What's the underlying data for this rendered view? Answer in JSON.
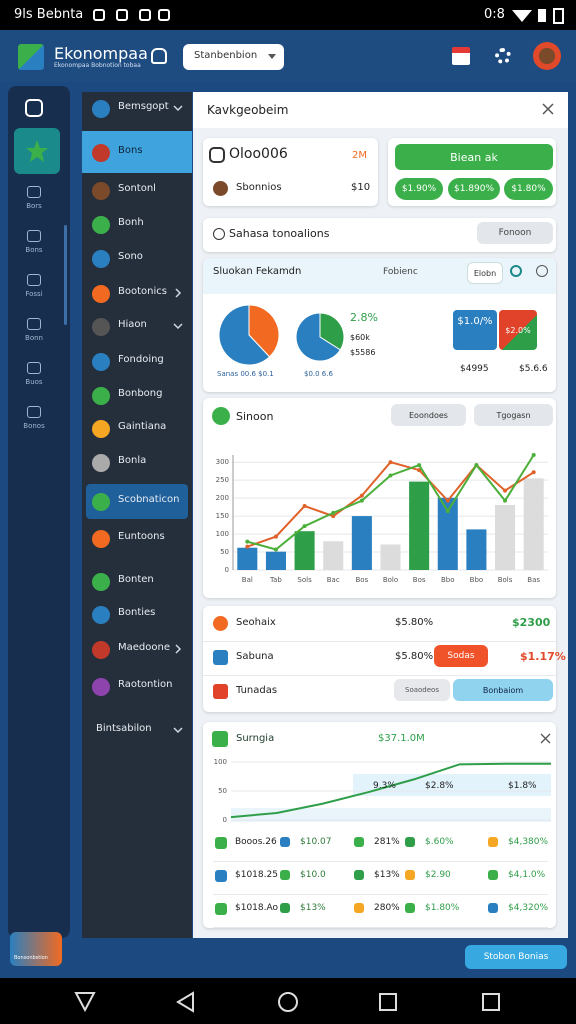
{
  "status_bar": {
    "left": "9ls Bebnta",
    "right": "0:8"
  },
  "header": {
    "title": "Ekonompaa",
    "subtitle": "Ekonompaa Bobnotion tobaa",
    "search": "Stanbenbion"
  },
  "rail": {
    "items": [
      "Bors",
      "Bons",
      "Fossi",
      "Bonn",
      "Buos",
      "Bonos"
    ],
    "card": "Bonsonbstion"
  },
  "menu": {
    "items": [
      "Bemsgopt",
      "Bons",
      "Sontonl",
      "Bonh",
      "Sono",
      "Bootonics",
      "Hiaon",
      "Fondoing",
      "Bonbong",
      "Gaintiana",
      "Bonla",
      "Scobnaticon",
      "Euntoons",
      "Bonten",
      "Bonties",
      "Maedoone",
      "Raotontion",
      "Bintsabilon"
    ]
  },
  "panel": {
    "title": "Kavkgeobeim",
    "summary": {
      "title": "Oloo006",
      "badge": "2M",
      "row_label": "Sbonnios",
      "row_value": "$10",
      "button": "Biean ak",
      "pills": [
        "$1.90%",
        "$1.890%",
        "$1.80%"
      ]
    },
    "filter": {
      "label": "Sahasa tonoalions",
      "select": "Fonoon"
    },
    "pie_card": {
      "title": "Sluokan Fekamdn",
      "subtitle": "Fobienc",
      "tab": "Elobn",
      "pies": [
        {
          "values": [
            38,
            62
          ],
          "colors": [
            "#f26a21",
            "#2a7fc0"
          ]
        },
        {
          "values": [
            34,
            66
          ],
          "colors": [
            "#2f9e49",
            "#2a7fc0"
          ]
        }
      ],
      "stats": [
        "2.8%",
        "$60k",
        "$5586"
      ],
      "tiles": [
        "$1.0/%",
        "$2.0%"
      ],
      "tile_values": [
        "$4995",
        "$5.6.6"
      ],
      "legend": [
        "Sanas 00.6 $0.1",
        "$0.0 6.6"
      ]
    },
    "bar_card": {
      "filters": [
        "Eoondoes",
        "Tgogasn"
      ],
      "chart_data": {
        "type": "bar",
        "title": "Sinoon",
        "categories": [
          "Bal",
          "Tab",
          "Sols",
          "Bac",
          "Bos",
          "Bolo",
          "Bos",
          "Bbo",
          "Bbo",
          "Bols",
          "Bas"
        ],
        "series": [
          {
            "type": "bar",
            "color": "#2a7fc0",
            "values": [
              62,
              51,
              null,
              null,
              150,
              null,
              null,
              201,
              113,
              null,
              null
            ]
          },
          {
            "type": "bar",
            "color": "#2f9e49",
            "values": [
              null,
              null,
              108,
              null,
              null,
              null,
              246,
              null,
              null,
              null,
              null
            ]
          },
          {
            "type": "bar",
            "color": "#dcdcdc",
            "values": [
              null,
              null,
              null,
              80,
              null,
              71,
              null,
              null,
              null,
              181,
              255
            ]
          },
          {
            "type": "line",
            "color": "#e0622a",
            "values": [
              65,
              93,
              178,
              150,
              207,
              300,
              278,
              193,
              292,
              221,
              272
            ]
          },
          {
            "type": "line",
            "color": "#4caf3a",
            "values": [
              79,
              57,
              122,
              159,
              193,
              263,
              292,
              164,
              292,
              193,
              320
            ]
          }
        ],
        "ylim": [
          0,
          320
        ],
        "yticks": [
          0,
          50,
          100,
          150,
          200,
          250,
          300
        ],
        "grid": true
      }
    },
    "rows": [
      {
        "label": "Seohaix",
        "value": "$5.80%",
        "change": "$2300"
      },
      {
        "label": "Sabuna",
        "value": "$5.80%",
        "button": "Sodas",
        "change": "$1.17%"
      },
      {
        "label": "Tunadas",
        "select": "Soaodeos",
        "button": "Bonbaiom"
      }
    ],
    "line_card": {
      "value": "$37.1.0M",
      "callouts": [
        "9.3%",
        "$2.8%",
        "$1.8%"
      ],
      "chart_data": {
        "type": "line",
        "title": "Surngia",
        "x": [
          0,
          1,
          2,
          3,
          4,
          5,
          6,
          7
        ],
        "xlim": [
          0,
          7
        ],
        "series": [
          {
            "color": "#2f9e49",
            "values": [
              5,
              12,
              28,
              48,
              70,
              96,
              97,
              97
            ]
          }
        ],
        "ylim": [
          0,
          100
        ],
        "yticks": [
          0,
          50,
          100
        ],
        "grid": true
      },
      "table": [
        [
          "Booos.26",
          "$10.07",
          "281%",
          "$.60%",
          "$4,380%"
        ],
        [
          "$1018.25",
          "$10.0",
          "$13%",
          "$2.90",
          "$4,1.0%"
        ],
        [
          "$1018.Ao",
          "$13%",
          "280%",
          "$1.80%",
          "$4,320%"
        ]
      ]
    }
  },
  "fab": "Stobon Bonias"
}
